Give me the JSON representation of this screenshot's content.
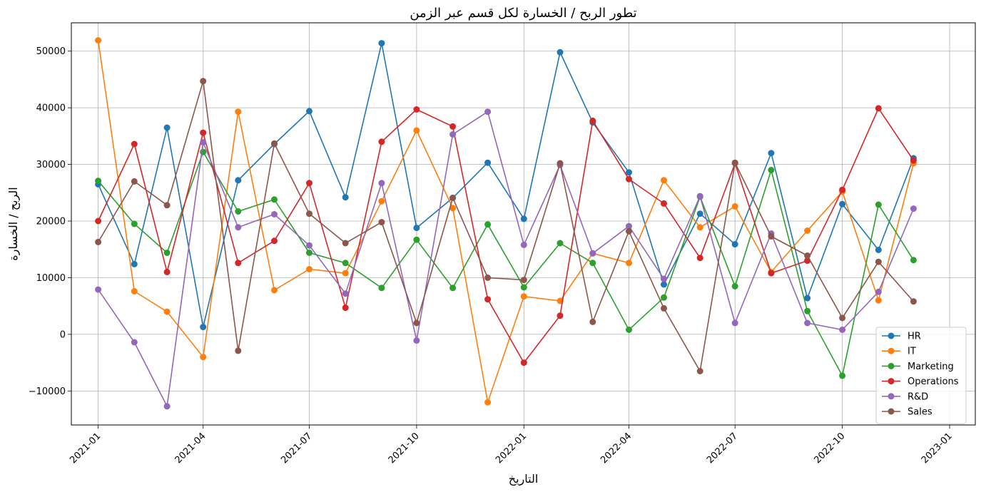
{
  "chart_data": {
    "type": "line",
    "title": "تطور الربح / الخسارة لكل قسم عبر الزمن",
    "xlabel": "التاريخ",
    "ylabel": "الربح / الخسارة",
    "x": [
      "2021-01",
      "2021-02",
      "2021-03",
      "2021-04",
      "2021-05",
      "2021-06",
      "2021-07",
      "2021-08",
      "2021-09",
      "2021-10",
      "2021-11",
      "2021-12",
      "2022-01",
      "2022-02",
      "2022-03",
      "2022-04",
      "2022-05",
      "2022-06",
      "2022-07",
      "2022-08",
      "2022-09",
      "2022-10",
      "2022-11",
      "2022-12"
    ],
    "xlim": [
      "2020-12-09",
      "2023-01-23"
    ],
    "x_ticks": [
      "2021-01",
      "2021-04",
      "2021-07",
      "2021-10",
      "2022-01",
      "2022-04",
      "2022-07",
      "2022-10",
      "2023-01"
    ],
    "ylim": [
      -16000,
      55000
    ],
    "y_ticks": [
      -10000,
      0,
      10000,
      20000,
      30000,
      40000,
      50000
    ],
    "grid": true,
    "legend_position": "bottom-right",
    "series": [
      {
        "name": "HR",
        "color": "#1f77b4",
        "values": [
          26500,
          12400,
          36500,
          1300,
          27200,
          33600,
          39400,
          24200,
          51400,
          18800,
          24100,
          30300,
          20400,
          49800,
          37400,
          28600,
          8800,
          21300,
          15900,
          32000,
          6400,
          23000,
          14900,
          31100
        ]
      },
      {
        "name": "IT",
        "color": "#ff7f0e",
        "values": [
          51900,
          7600,
          4000,
          -4000,
          39300,
          7800,
          11500,
          10800,
          23500,
          36000,
          22300,
          -12000,
          6700,
          5900,
          14300,
          12600,
          27200,
          18900,
          22600,
          11000,
          18300,
          25200,
          6000,
          30200
        ]
      },
      {
        "name": "Marketing",
        "color": "#2ca02c",
        "values": [
          27100,
          19500,
          14400,
          32200,
          21700,
          23800,
          14400,
          12600,
          8200,
          16700,
          8200,
          19400,
          8300,
          16100,
          12600,
          800,
          6500,
          24300,
          8500,
          29000,
          4100,
          -7300,
          22900,
          13100
        ]
      },
      {
        "name": "Operations",
        "color": "#d62728",
        "values": [
          20000,
          33600,
          11000,
          35600,
          12600,
          16500,
          26700,
          4700,
          34000,
          39700,
          36700,
          6200,
          -5000,
          3300,
          37700,
          27400,
          23100,
          13500,
          30200,
          10800,
          13000,
          25500,
          39900,
          30700
        ]
      },
      {
        "name": "R&D",
        "color": "#9467bd",
        "values": [
          7900,
          -1400,
          -12700,
          33900,
          18900,
          21200,
          15700,
          7200,
          26700,
          -1100,
          35300,
          39300,
          15800,
          29900,
          14300,
          19100,
          9800,
          24400,
          2000,
          17800,
          2000,
          800,
          7500,
          22200
        ]
      },
      {
        "name": "Sales",
        "color": "#8c564b",
        "values": [
          16300,
          27000,
          22800,
          44700,
          -2900,
          33700,
          21300,
          16100,
          19800,
          2000,
          24100,
          10000,
          9600,
          30200,
          2200,
          18200,
          4600,
          -6500,
          30300,
          17300,
          13900,
          2900,
          12800,
          5800
        ]
      }
    ]
  }
}
